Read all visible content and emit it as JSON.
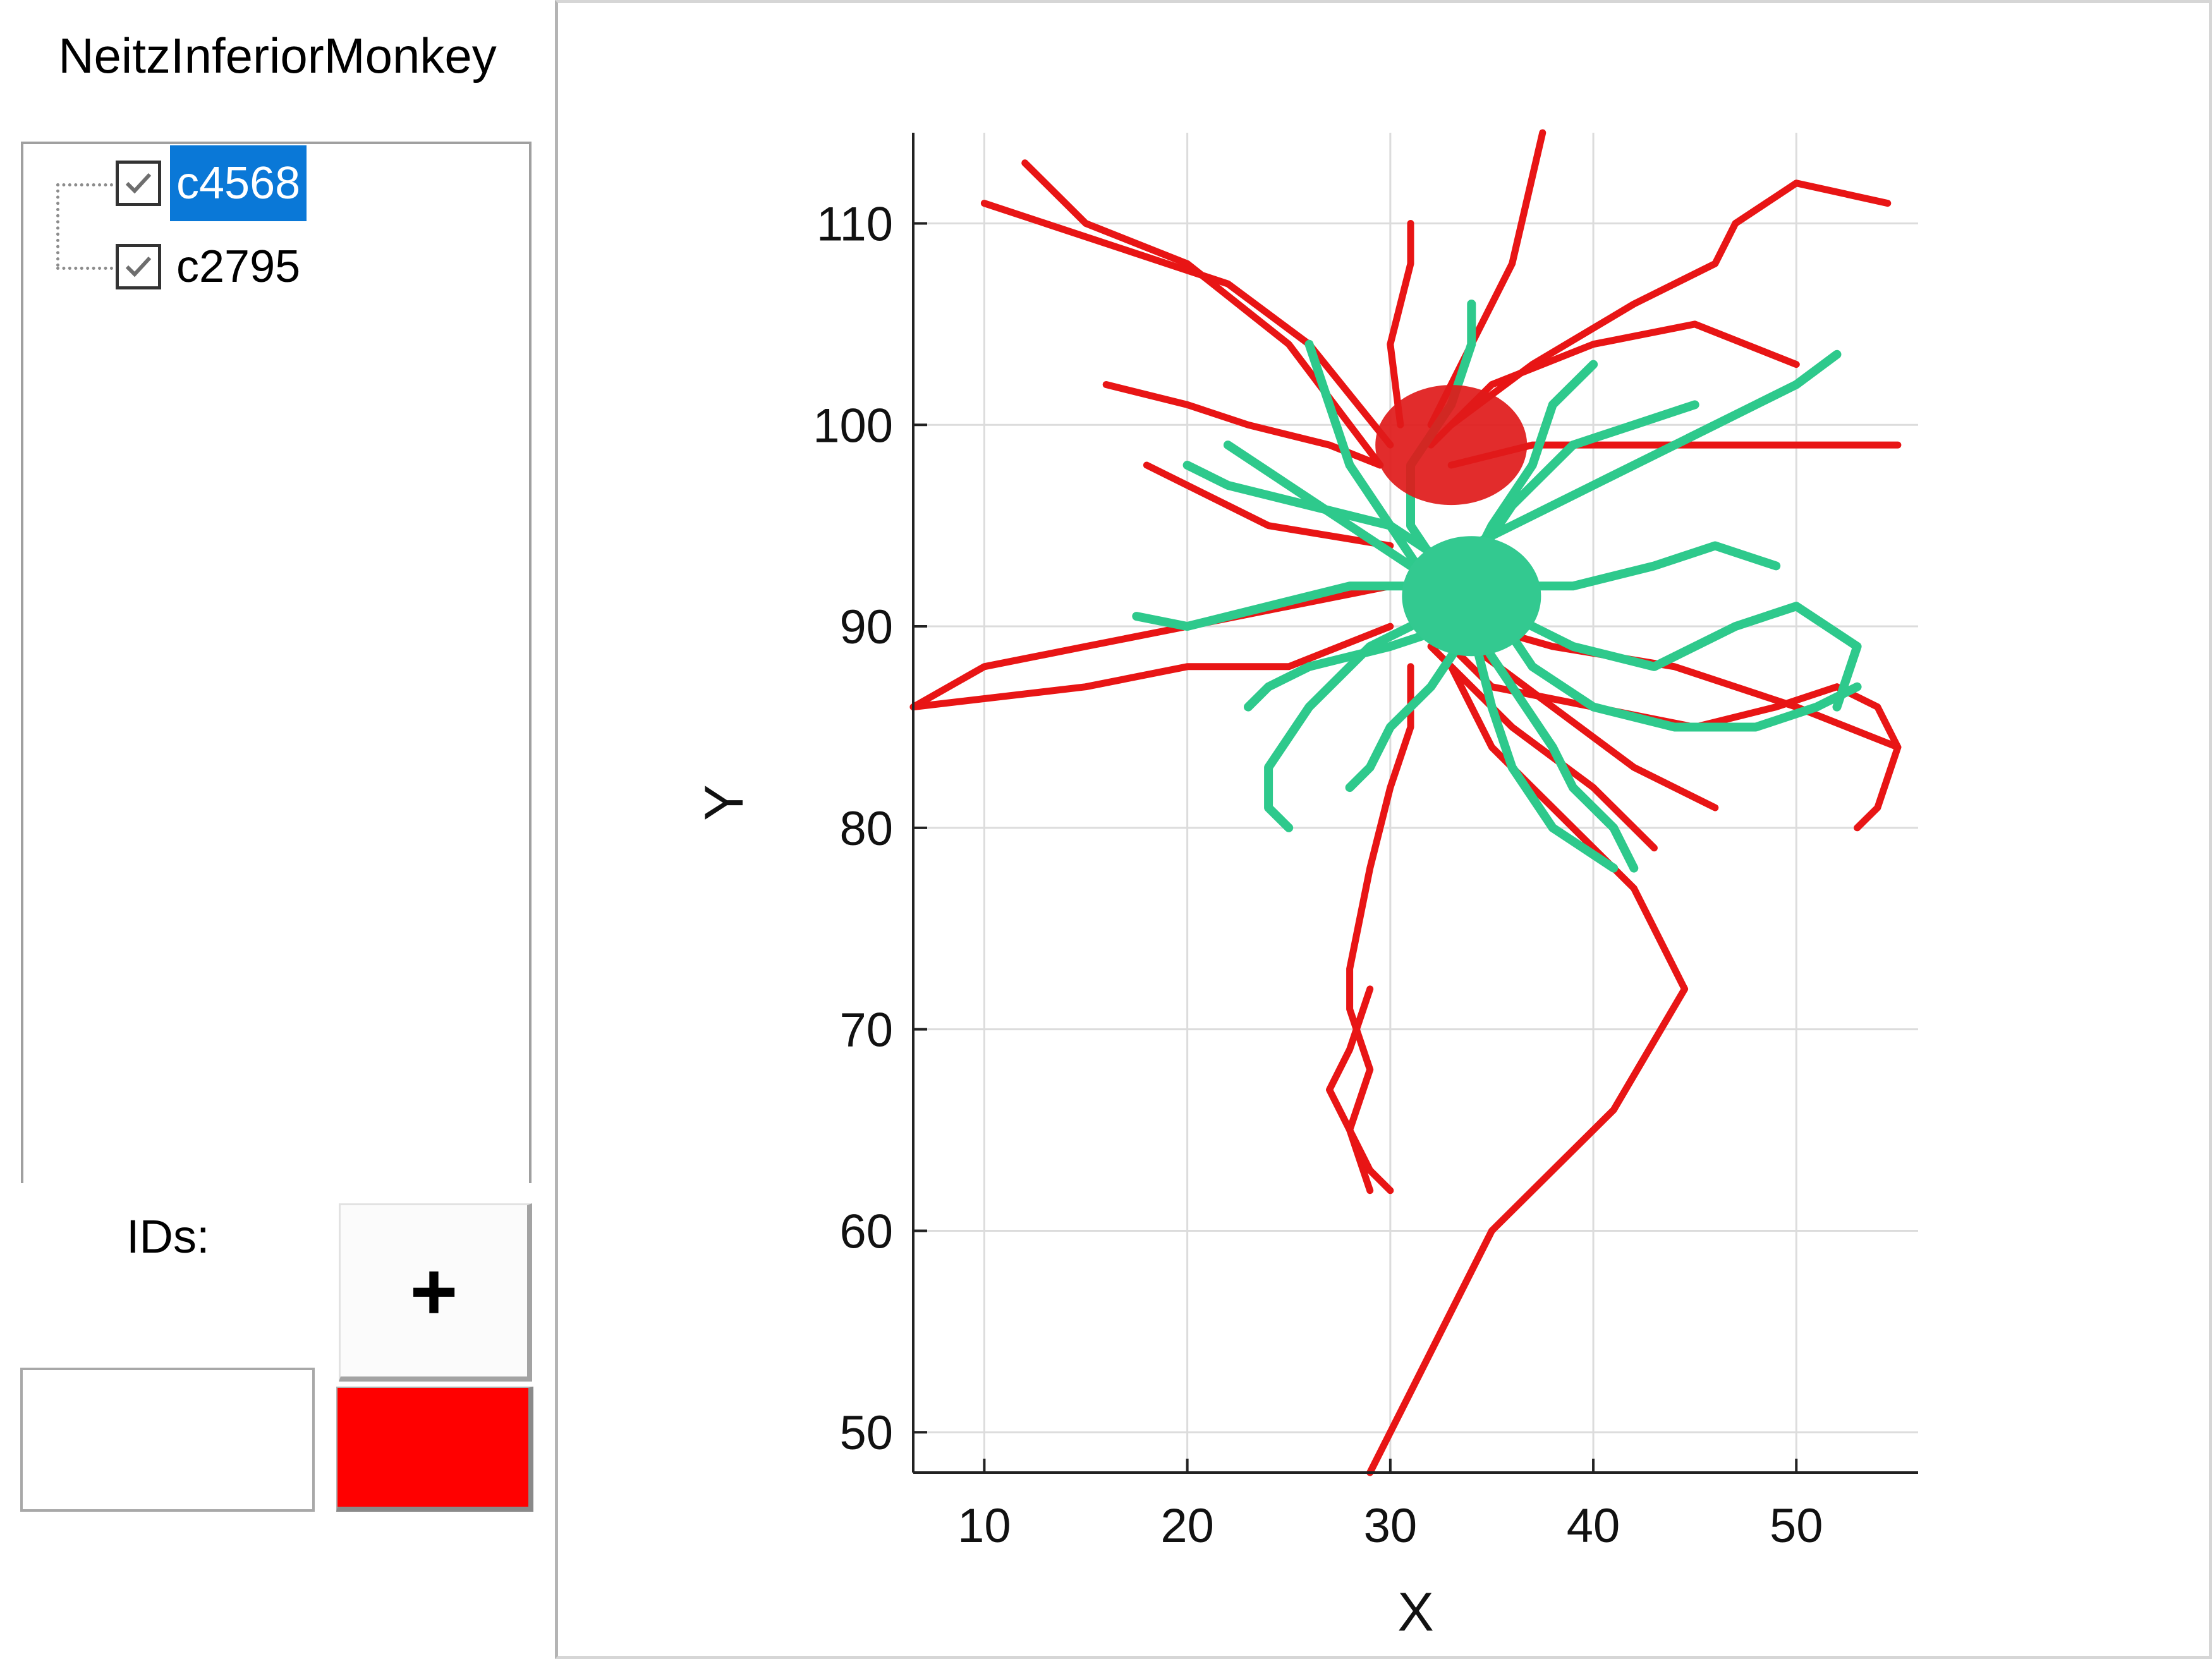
{
  "sidebar": {
    "title": "NeitzInferiorMonkey",
    "tree_items": [
      {
        "label": "c4568",
        "checked": true,
        "selected": true
      },
      {
        "label": "c2795",
        "checked": true,
        "selected": false
      }
    ],
    "ids_label": "IDs:",
    "add_button_label": "+",
    "id_input_value": "",
    "color_swatch": "#ff0000"
  },
  "chart_data": {
    "type": "scatter",
    "xlabel": "X",
    "ylabel": "Y",
    "xlim": [
      6.5,
      56
    ],
    "ylim": [
      48,
      114.5
    ],
    "xticks": [
      10,
      20,
      30,
      40,
      50
    ],
    "yticks": [
      50,
      60,
      70,
      80,
      90,
      100,
      110
    ],
    "grid": true,
    "series": [
      {
        "color": "#e81515",
        "segments": [
          [
            [
              29.5,
              98
            ],
            [
              27,
              99
            ],
            [
              23,
              100
            ],
            [
              20,
              101
            ],
            [
              16,
              102
            ]
          ],
          [
            [
              29.5,
              98
            ],
            [
              25,
              104
            ],
            [
              20,
              108
            ],
            [
              15,
              110
            ],
            [
              12,
              113
            ]
          ],
          [
            [
              30,
              99
            ],
            [
              26,
              104
            ],
            [
              22,
              107
            ],
            [
              10,
              111
            ]
          ],
          [
            [
              30.5,
              100
            ],
            [
              30,
              104
            ],
            [
              31,
              108
            ],
            [
              31,
              110
            ]
          ],
          [
            [
              32,
              100
            ],
            [
              34,
              104
            ],
            [
              36,
              108
            ],
            [
              37.5,
              114.5
            ]
          ],
          [
            [
              33,
              100
            ],
            [
              37,
              103
            ],
            [
              42,
              106
            ],
            [
              46,
              108
            ],
            [
              47,
              110
            ],
            [
              50,
              112
            ],
            [
              54.5,
              111
            ]
          ],
          [
            [
              33,
              98
            ],
            [
              37,
              99
            ],
            [
              42,
              99
            ],
            [
              50,
              99
            ],
            [
              55,
              99
            ]
          ],
          [
            [
              32,
              99
            ],
            [
              35,
              102
            ],
            [
              40,
              104
            ],
            [
              45,
              105
            ],
            [
              50,
              103
            ]
          ],
          [
            [
              30,
              94
            ],
            [
              24,
              95
            ],
            [
              22,
              96
            ],
            [
              18,
              98
            ]
          ],
          [
            [
              30,
              92
            ],
            [
              25,
              91
            ],
            [
              20,
              90
            ],
            [
              15,
              89
            ],
            [
              10,
              88
            ],
            [
              6.5,
              86
            ]
          ],
          [
            [
              30,
              90
            ],
            [
              25,
              88
            ],
            [
              20,
              88
            ],
            [
              15,
              87
            ],
            [
              6.5,
              86
            ]
          ],
          [
            [
              32,
              90
            ],
            [
              35,
              87
            ],
            [
              40,
              86
            ],
            [
              45,
              85
            ],
            [
              49,
              86
            ],
            [
              52,
              87
            ],
            [
              54,
              86
            ],
            [
              55,
              84
            ],
            [
              54,
              81
            ],
            [
              53,
              80
            ]
          ],
          [
            [
              31,
              91
            ],
            [
              38,
              89
            ],
            [
              44,
              88
            ],
            [
              50,
              86
            ],
            [
              55,
              84
            ]
          ],
          [
            [
              34,
              89
            ],
            [
              38,
              86
            ],
            [
              42,
              83
            ],
            [
              46,
              81
            ]
          ],
          [
            [
              32,
              89
            ],
            [
              36,
              85
            ],
            [
              40,
              82
            ],
            [
              43,
              79
            ]
          ],
          [
            [
              31,
              88
            ],
            [
              31,
              85
            ],
            [
              30,
              82
            ],
            [
              29,
              78
            ],
            [
              28,
              73
            ],
            [
              28,
              71
            ],
            [
              29,
              68
            ],
            [
              28,
              65
            ],
            [
              29,
              62
            ]
          ],
          [
            [
              33,
              88
            ],
            [
              35,
              84
            ],
            [
              37,
              82
            ],
            [
              39,
              80
            ],
            [
              42,
              77
            ],
            [
              44.5,
              72
            ],
            [
              41,
              66
            ],
            [
              38,
              63
            ],
            [
              35,
              60
            ],
            [
              33,
              56
            ],
            [
              31,
              52
            ],
            [
              29,
              48
            ]
          ],
          [
            [
              29,
              72
            ],
            [
              28,
              69
            ],
            [
              27,
              67
            ],
            [
              29,
              63
            ],
            [
              30,
              62
            ]
          ]
        ]
      },
      {
        "color": "#2ec98c",
        "segments": [
          [
            [
              32,
              92
            ],
            [
              30,
              95
            ],
            [
              28,
              98
            ],
            [
              27,
              101
            ],
            [
              26,
              104
            ]
          ],
          [
            [
              33,
              92
            ],
            [
              31,
              95
            ],
            [
              31,
              98
            ],
            [
              33,
              101
            ],
            [
              34,
              104
            ],
            [
              34,
              106
            ]
          ],
          [
            [
              34,
              93
            ],
            [
              35,
              95
            ],
            [
              37,
              98
            ],
            [
              38,
              101
            ],
            [
              40,
              103
            ]
          ],
          [
            [
              34,
              94
            ],
            [
              38,
              96
            ],
            [
              42,
              98
            ],
            [
              46,
              100
            ],
            [
              50,
              102
            ],
            [
              52,
              103.5
            ]
          ],
          [
            [
              33,
              93
            ],
            [
              30,
              95
            ],
            [
              26,
              96
            ],
            [
              22,
              97
            ],
            [
              20,
              98
            ]
          ],
          [
            [
              32,
              92
            ],
            [
              28,
              92
            ],
            [
              24,
              91
            ],
            [
              20,
              90
            ],
            [
              17.5,
              90.5
            ]
          ],
          [
            [
              33,
              91
            ],
            [
              29,
              89
            ],
            [
              26,
              86
            ],
            [
              24,
              83
            ],
            [
              24,
              81
            ],
            [
              25,
              80
            ]
          ],
          [
            [
              34,
              90
            ],
            [
              32,
              87
            ],
            [
              30,
              85
            ],
            [
              29,
              83
            ],
            [
              28,
              82
            ]
          ],
          [
            [
              35,
              91
            ],
            [
              37,
              88
            ],
            [
              40,
              86
            ],
            [
              44,
              85
            ],
            [
              48,
              85
            ],
            [
              51,
              86
            ],
            [
              53,
              87
            ]
          ],
          [
            [
              35,
              91
            ],
            [
              39,
              89
            ],
            [
              43,
              88
            ],
            [
              47,
              90
            ],
            [
              50,
              91
            ],
            [
              53,
              89
            ],
            [
              52,
              86
            ]
          ],
          [
            [
              35,
              92
            ],
            [
              39,
              92
            ],
            [
              43,
              93
            ],
            [
              46,
              94
            ],
            [
              49,
              93
            ]
          ],
          [
            [
              34,
              90
            ],
            [
              36,
              87
            ],
            [
              38,
              84
            ],
            [
              39,
              82
            ],
            [
              41,
              80
            ],
            [
              42,
              78
            ]
          ],
          [
            [
              34,
              90
            ],
            [
              35,
              86
            ],
            [
              36,
              83
            ],
            [
              38,
              80
            ],
            [
              41,
              78
            ]
          ],
          [
            [
              33,
              90
            ],
            [
              30,
              89
            ],
            [
              26,
              88
            ],
            [
              24,
              87
            ],
            [
              23,
              86
            ]
          ],
          [
            [
              33,
              92
            ],
            [
              31,
              93
            ],
            [
              28,
              95
            ],
            [
              25,
              97
            ],
            [
              22,
              99
            ]
          ],
          [
            [
              34,
              93
            ],
            [
              36,
              96
            ],
            [
              39,
              99
            ],
            [
              42,
              100
            ],
            [
              45,
              101
            ]
          ]
        ]
      }
    ]
  }
}
